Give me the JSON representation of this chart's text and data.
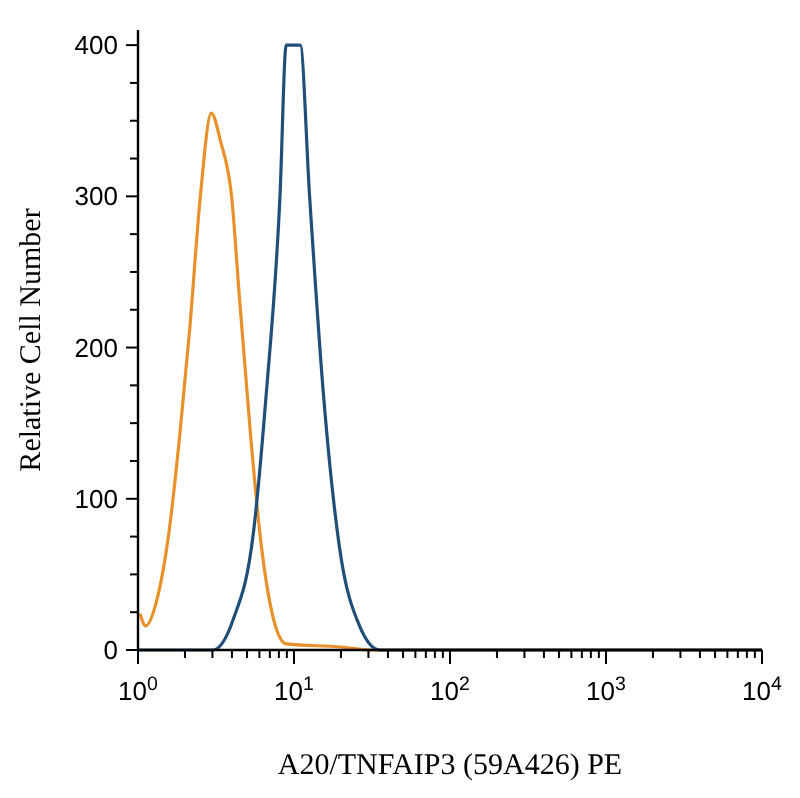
{
  "chart_data": {
    "type": "line",
    "xlabel": "A20/TNFAIP3 (59A426) PE",
    "ylabel": "Relative Cell Number",
    "log": "x",
    "xlim": [
      1,
      10000
    ],
    "ylim": [
      0,
      410
    ],
    "xticks": [
      {
        "value": 1,
        "label": "10$^{0}$"
      },
      {
        "value": 2,
        "label": null
      },
      {
        "value": 3,
        "label": null
      },
      {
        "value": 4,
        "label": null
      },
      {
        "value": 5,
        "label": null
      },
      {
        "value": 6,
        "label": null
      },
      {
        "value": 7,
        "label": null
      },
      {
        "value": 8,
        "label": null
      },
      {
        "value": 9,
        "label": null
      },
      {
        "value": 10,
        "label": "10$^{1}$"
      },
      {
        "value": 20,
        "label": null
      },
      {
        "value": 30,
        "label": null
      },
      {
        "value": 40,
        "label": null
      },
      {
        "value": 50,
        "label": null
      },
      {
        "value": 60,
        "label": null
      },
      {
        "value": 70,
        "label": null
      },
      {
        "value": 80,
        "label": null
      },
      {
        "value": 90,
        "label": null
      },
      {
        "value": 100,
        "label": "10$^{2}$"
      },
      {
        "value": 200,
        "label": null
      },
      {
        "value": 300,
        "label": null
      },
      {
        "value": 400,
        "label": null
      },
      {
        "value": 500,
        "label": null
      },
      {
        "value": 600,
        "label": null
      },
      {
        "value": 700,
        "label": null
      },
      {
        "value": 800,
        "label": null
      },
      {
        "value": 900,
        "label": null
      },
      {
        "value": 1000,
        "label": "10$^{3}$"
      },
      {
        "value": 2000,
        "label": null
      },
      {
        "value": 3000,
        "label": null
      },
      {
        "value": 4000,
        "label": null
      },
      {
        "value": 5000,
        "label": null
      },
      {
        "value": 6000,
        "label": null
      },
      {
        "value": 7000,
        "label": null
      },
      {
        "value": 8000,
        "label": null
      },
      {
        "value": 9000,
        "label": null
      },
      {
        "value": 10000,
        "label": "10$^{4}$"
      }
    ],
    "yticks": [
      0,
      {
        "value": 25,
        "label": null
      },
      {
        "value": 50,
        "label": null
      },
      {
        "value": 75,
        "label": null
      },
      100,
      {
        "value": 125,
        "label": null
      },
      {
        "value": 150,
        "label": null
      },
      {
        "value": 175,
        "label": null
      },
      200,
      {
        "value": 225,
        "label": null
      },
      {
        "value": 250,
        "label": null
      },
      {
        "value": 275,
        "label": null
      },
      300,
      {
        "value": 325,
        "label": null
      },
      {
        "value": 350,
        "label": null
      },
      {
        "value": 375,
        "label": null
      },
      400
    ],
    "grid": false,
    "marker": "none",
    "line_style": "solid",
    "series": [
      {
        "color": "#e8902a",
        "x": [
          1.03,
          1.12,
          1.32,
          1.58,
          1.86,
          2.14,
          2.51,
          2.95,
          3.39,
          3.98,
          4.47,
          5.25,
          6.03,
          7.41,
          8.91,
          20,
          31.6,
          10000
        ],
        "values": [
          24,
          16,
          33,
          78,
          144,
          211,
          300,
          355,
          336,
          300,
          233,
          144,
          78,
          20,
          4,
          2,
          0,
          0
        ]
      },
      {
        "color": "#1f4e79",
        "x": [
          1,
          3.02,
          4.07,
          5.5,
          6.61,
          8.13,
          8.91,
          10.96,
          12.59,
          15.5,
          19.5,
          26.3,
          35.5,
          10000
        ],
        "values": [
          0,
          0,
          20,
          78,
          167,
          300,
          400,
          400,
          300,
          167,
          69,
          16,
          0,
          0
        ]
      }
    ]
  }
}
